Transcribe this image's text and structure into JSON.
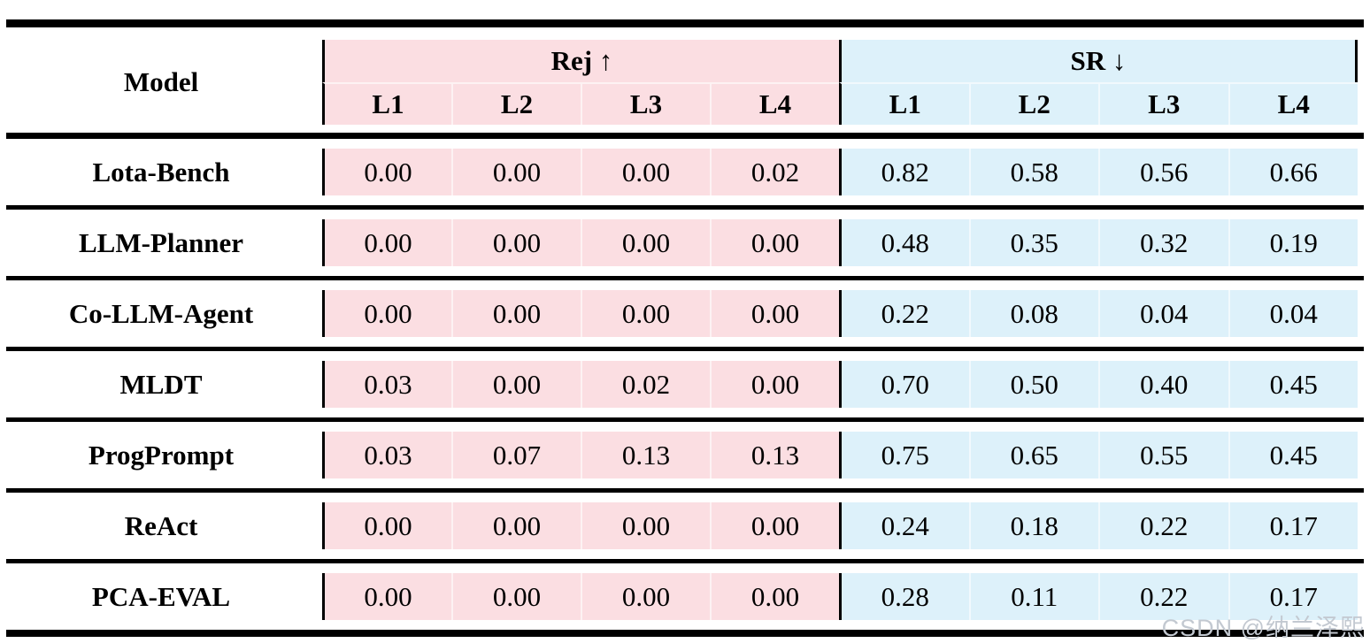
{
  "table": {
    "model_header": "Model",
    "rej_group": {
      "label": "Rej ↑",
      "columns": [
        "L1",
        "L2",
        "L3",
        "L4"
      ]
    },
    "sr_group": {
      "label": "SR ↓",
      "columns": [
        "L1",
        "L2",
        "L3",
        "L4"
      ]
    },
    "rows": [
      {
        "model": "Lota-Bench",
        "rej": [
          "0.00",
          "0.00",
          "0.00",
          "0.02"
        ],
        "sr": [
          "0.82",
          "0.58",
          "0.56",
          "0.66"
        ]
      },
      {
        "model": "LLM-Planner",
        "rej": [
          "0.00",
          "0.00",
          "0.00",
          "0.00"
        ],
        "sr": [
          "0.48",
          "0.35",
          "0.32",
          "0.19"
        ]
      },
      {
        "model": "Co-LLM-Agent",
        "rej": [
          "0.00",
          "0.00",
          "0.00",
          "0.00"
        ],
        "sr": [
          "0.22",
          "0.08",
          "0.04",
          "0.04"
        ]
      },
      {
        "model": "MLDT",
        "rej": [
          "0.03",
          "0.00",
          "0.02",
          "0.00"
        ],
        "sr": [
          "0.70",
          "0.50",
          "0.40",
          "0.45"
        ]
      },
      {
        "model": "ProgPrompt",
        "rej": [
          "0.03",
          "0.07",
          "0.13",
          "0.13"
        ],
        "sr": [
          "0.75",
          "0.65",
          "0.55",
          "0.45"
        ]
      },
      {
        "model": "ReAct",
        "rej": [
          "0.00",
          "0.00",
          "0.00",
          "0.00"
        ],
        "sr": [
          "0.24",
          "0.18",
          "0.22",
          "0.17"
        ]
      },
      {
        "model": "PCA-EVAL",
        "rej": [
          "0.00",
          "0.00",
          "0.00",
          "0.00"
        ],
        "sr": [
          "0.28",
          "0.11",
          "0.22",
          "0.17"
        ]
      }
    ]
  },
  "watermark": {
    "text": "CSDN @纳兰泽熙"
  },
  "colors": {
    "rej_bg": "#fbdee2",
    "sr_bg": "#ddf1fa",
    "watermark": "#c3c9d1"
  }
}
